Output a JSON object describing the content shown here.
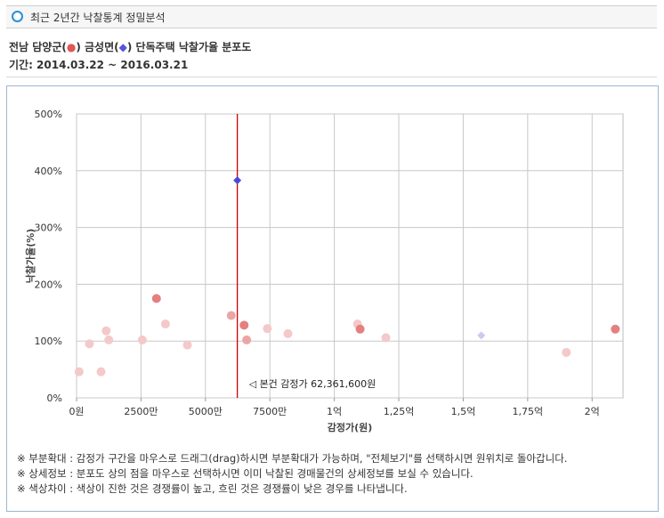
{
  "header": {
    "title": "최근 2년간 낙찰통계 정밀분석"
  },
  "subtitle": {
    "prefix": "전남 담양군(",
    "red_marker": "●",
    "middle": ") 금성면(",
    "blue_marker": "◆",
    "suffix": ") 단독주택 낙찰가율 분포도",
    "period": "기간: 2014.03.22 ~ 2016.03.21"
  },
  "chart_data": {
    "type": "scatter",
    "xlabel": "감정가(원)",
    "ylabel": "낙찰가율(%)",
    "xlim": [
      0,
      212000000
    ],
    "ylim": [
      0,
      500
    ],
    "x_ticks": [
      {
        "value": 0,
        "label": "0원"
      },
      {
        "value": 25000000,
        "label": "2500만"
      },
      {
        "value": 50000000,
        "label": "5000만"
      },
      {
        "value": 75000000,
        "label": "7500만"
      },
      {
        "value": 100000000,
        "label": "1억"
      },
      {
        "value": 125000000,
        "label": "1,25억"
      },
      {
        "value": 150000000,
        "label": "1,5억"
      },
      {
        "value": 175000000,
        "label": "1,75억"
      },
      {
        "value": 200000000,
        "label": "2억"
      }
    ],
    "y_ticks": [
      {
        "value": 0,
        "label": "0%"
      },
      {
        "value": 100,
        "label": "100%"
      },
      {
        "value": 200,
        "label": "200%"
      },
      {
        "value": 300,
        "label": "300%"
      },
      {
        "value": 400,
        "label": "400%"
      },
      {
        "value": 500,
        "label": "500%"
      }
    ],
    "grid": true,
    "reference_line": {
      "x": 62361600,
      "color": "#cc0000",
      "label": "◁ 본건 감정가 62,361,600원"
    },
    "series": [
      {
        "marker": "circle",
        "points": [
          {
            "x": 1000000,
            "y": 46,
            "intensity": 0.3
          },
          {
            "x": 5000000,
            "y": 95,
            "intensity": 0.3
          },
          {
            "x": 9500000,
            "y": 46,
            "intensity": 0.3
          },
          {
            "x": 11500000,
            "y": 118,
            "intensity": 0.3
          },
          {
            "x": 12500000,
            "y": 102,
            "intensity": 0.3
          },
          {
            "x": 25500000,
            "y": 102,
            "intensity": 0.3
          },
          {
            "x": 31000000,
            "y": 175,
            "intensity": 0.7
          },
          {
            "x": 34500000,
            "y": 130,
            "intensity": 0.3
          },
          {
            "x": 43000000,
            "y": 93,
            "intensity": 0.3
          },
          {
            "x": 60000000,
            "y": 145,
            "intensity": 0.5
          },
          {
            "x": 65000000,
            "y": 128,
            "intensity": 0.7
          },
          {
            "x": 66000000,
            "y": 102,
            "intensity": 0.5
          },
          {
            "x": 74000000,
            "y": 122,
            "intensity": 0.3
          },
          {
            "x": 82000000,
            "y": 113,
            "intensity": 0.3
          },
          {
            "x": 109000000,
            "y": 130,
            "intensity": 0.3
          },
          {
            "x": 110000000,
            "y": 121,
            "intensity": 0.7
          },
          {
            "x": 120000000,
            "y": 106,
            "intensity": 0.3
          },
          {
            "x": 190000000,
            "y": 80,
            "intensity": 0.3
          },
          {
            "x": 209000000,
            "y": 121,
            "intensity": 0.7
          }
        ]
      },
      {
        "marker": "diamond",
        "points": [
          {
            "x": 62361600,
            "y": 383,
            "intensity": 1.0
          },
          {
            "x": 157000000,
            "y": 110,
            "intensity": 0.3
          }
        ]
      }
    ]
  },
  "notes": [
    "※ 부분확대 : 감정가 구간을 마우스로 드래그(drag)하시면 부분확대가 가능하며, \"전체보기\"를 선택하시면 원위치로 돌아갑니다.",
    "※ 상세정보 : 분포도 상의 점을 마우스로 선택하시면 이미 낙찰된 경매물건의 상세정보를 보실 수 있습니다.",
    "※ 색상차이 : 색상이 진한 것은 경쟁률이 높고, 흐린 것은 경쟁률이 낮은 경우를 나타냅니다."
  ],
  "colors": {
    "red_series": "#d94a4a",
    "blue_series": "#4a4ad9",
    "reference_line": "#cc0000",
    "frame_border": "#9fb6cc"
  }
}
